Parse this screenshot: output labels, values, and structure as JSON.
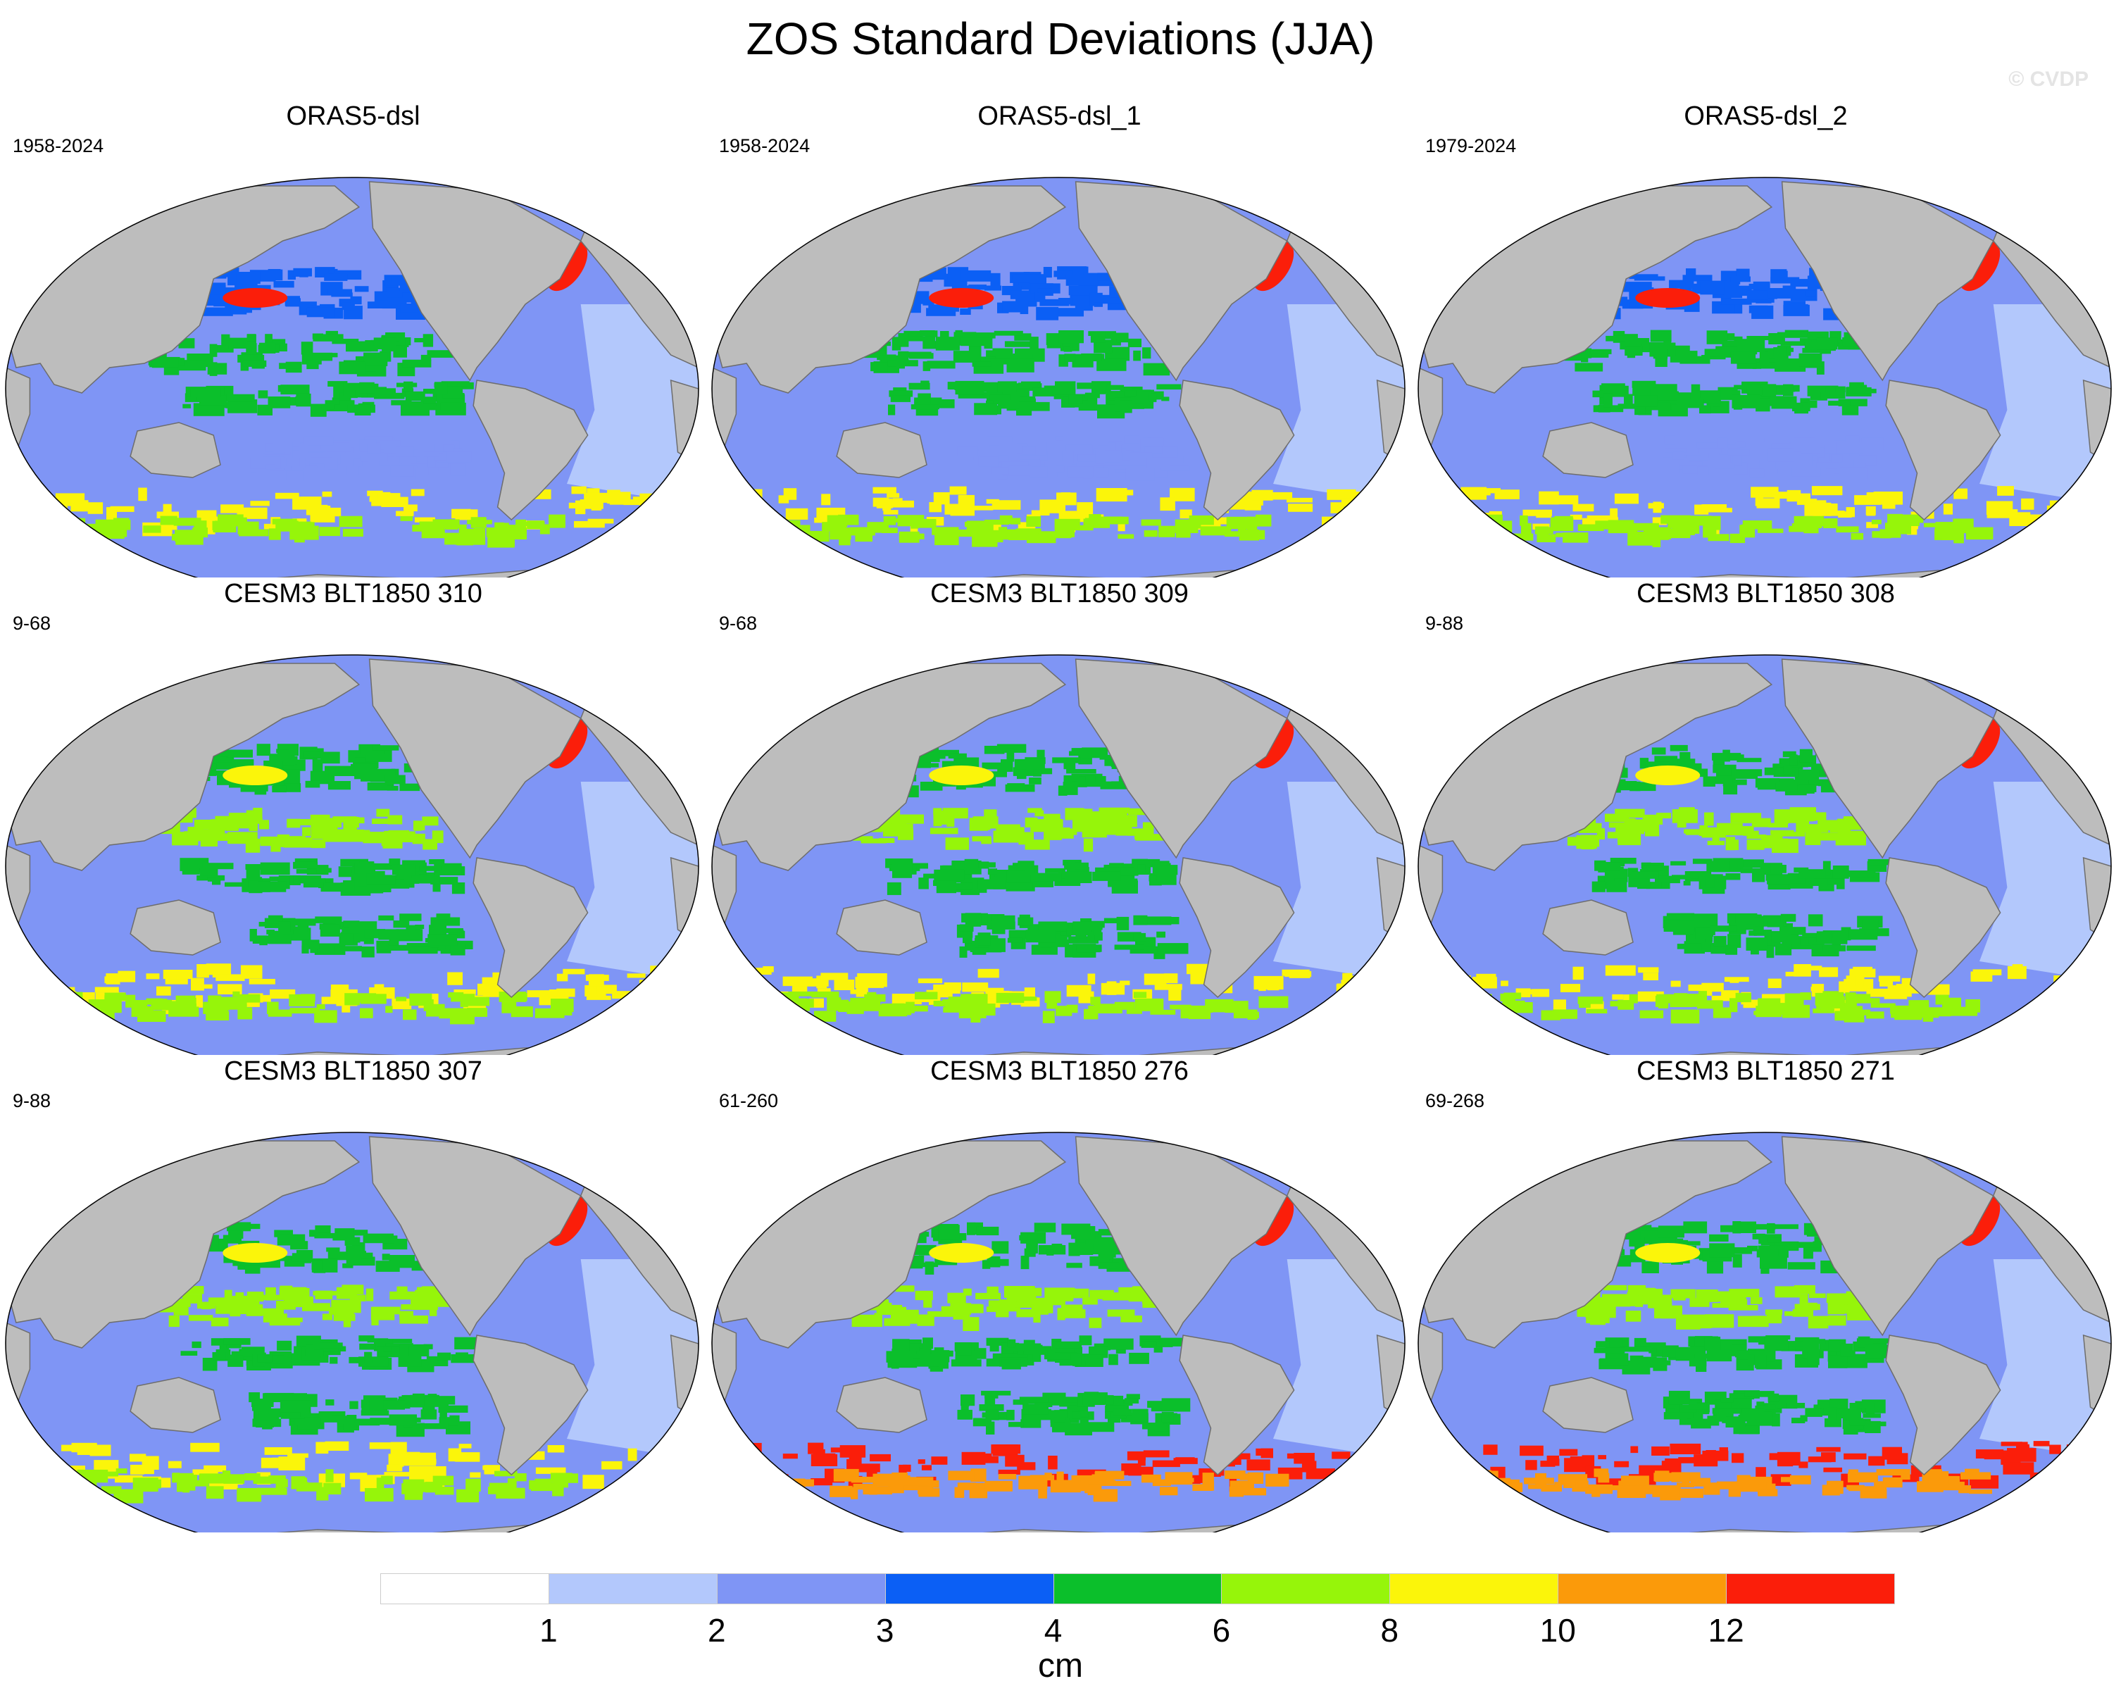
{
  "title": "ZOS Standard Deviations (JJA)",
  "watermark": "© CVDP",
  "colors": {
    "land": "#bdbdbd",
    "ocean_base": "#7f95f5",
    "ice": "#ffffff",
    "bins": [
      "#ffffff",
      "#b3c8fc",
      "#7f95f5",
      "#0b5ff5",
      "#0bbf2b",
      "#96f50a",
      "#fbf50a",
      "#fb9a0a",
      "#fb1e0a"
    ]
  },
  "colorbar": {
    "unit": "cm",
    "labels": [
      "1",
      "2",
      "3",
      "4",
      "6",
      "8",
      "10",
      "12"
    ]
  },
  "panels": [
    {
      "title": "ORAS5-dsl",
      "years": "1958-2024"
    },
    {
      "title": "ORAS5-dsl_1",
      "years": "1958-2024"
    },
    {
      "title": "ORAS5-dsl_2",
      "years": "1979-2024"
    },
    {
      "title": "CESM3 BLT1850 310",
      "years": "9-68"
    },
    {
      "title": "CESM3 BLT1850 309",
      "years": "9-68"
    },
    {
      "title": "CESM3 BLT1850 308",
      "years": "9-88"
    },
    {
      "title": "CESM3 BLT1850 307",
      "years": "9-88"
    },
    {
      "title": "CESM3 BLT1850 276",
      "years": "61-260"
    },
    {
      "title": "CESM3 BLT1850 271",
      "years": "69-268"
    }
  ]
}
